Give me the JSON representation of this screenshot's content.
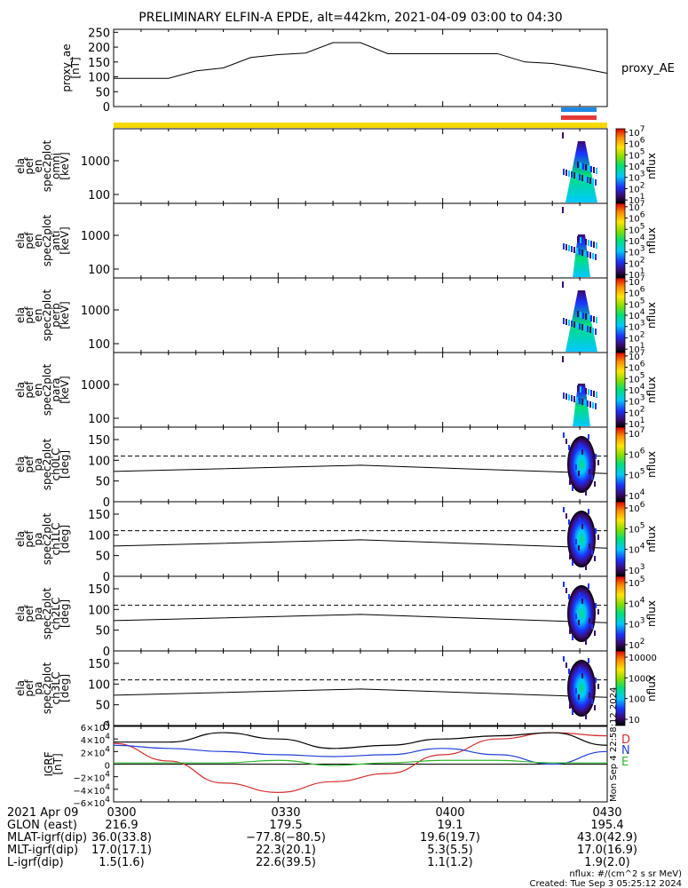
{
  "title": "PRELIMINARY ELFIN-A EPDE, alt=442km, 2021-04-09 03:00 to 04:30",
  "colors": {
    "yellow_bar": "#f5d800",
    "blue_bar": "#1e88e5",
    "red_bar": "#e53935",
    "trace_black": "#000000",
    "trace_red": "#d32f2f",
    "trace_blue": "#1e3fd8",
    "trace_green": "#2eb82e"
  },
  "chart_data": [
    {
      "type": "line",
      "panel": "proxy_ae",
      "ylabel_lines": [
        "proxy_ae",
        "[nT]"
      ],
      "right_label": "proxy_AE",
      "ylim": [
        0,
        260
      ],
      "yticks": [
        "250",
        "200",
        "150",
        "100",
        "50",
        "0"
      ],
      "ytick_values": [
        250,
        200,
        150,
        100,
        50,
        0
      ],
      "x_min": [
        0,
        2,
        5,
        10,
        15,
        20,
        25,
        30,
        35,
        40,
        45,
        50,
        55,
        60,
        65,
        70,
        75,
        80,
        85,
        90
      ],
      "values": [
        95,
        95,
        95,
        95,
        120,
        130,
        165,
        175,
        180,
        215,
        215,
        178,
        178,
        178,
        178,
        178,
        150,
        145,
        130,
        112
      ]
    },
    {
      "type": "heatmap",
      "panel": "en_omni",
      "ylabel_lines": [
        "ela",
        "pef",
        "en",
        "spec2plot",
        "omni",
        "[keV]"
      ],
      "yticks": [
        "1000",
        "100"
      ],
      "colorbar_label": "nflux",
      "colorbar_ticks": [
        "10^1",
        "10^2",
        "10^3",
        "10^4",
        "10^5",
        "10^6",
        "10^7"
      ]
    },
    {
      "type": "heatmap",
      "panel": "en_anti",
      "ylabel_lines": [
        "ela",
        "pef",
        "en",
        "spec2plot",
        "anti",
        "[keV]"
      ],
      "yticks": [
        "1000",
        "100"
      ],
      "colorbar_label": "nflux",
      "colorbar_ticks": [
        "10^1",
        "10^2",
        "10^3",
        "10^4",
        "10^5",
        "10^6",
        "10^7"
      ]
    },
    {
      "type": "heatmap",
      "panel": "en_perp",
      "ylabel_lines": [
        "ela",
        "pef",
        "en",
        "spec2plot",
        "perp",
        "[keV]"
      ],
      "yticks": [
        "1000",
        "100"
      ],
      "colorbar_label": "nflux",
      "colorbar_ticks": [
        "10^1",
        "10^2",
        "10^3",
        "10^4",
        "10^5",
        "10^6",
        "10^7"
      ]
    },
    {
      "type": "heatmap",
      "panel": "en_para",
      "ylabel_lines": [
        "ela",
        "pef",
        "en",
        "spec2plot",
        "para",
        "[keV]"
      ],
      "yticks": [
        "1000",
        "100"
      ],
      "colorbar_label": "nflux",
      "colorbar_ticks": [
        "10^1",
        "10^2",
        "10^3",
        "10^4",
        "10^5",
        "10^6",
        "10^7"
      ]
    },
    {
      "type": "heatmap",
      "panel": "pa_ch0LC",
      "ylabel_lines": [
        "ela",
        "pef",
        "pa",
        "spec2plot",
        "ch0LC",
        "[deg]"
      ],
      "ylim": [
        0,
        180
      ],
      "yticks": [
        "150",
        "100",
        "50",
        "0"
      ],
      "colorbar_label": "nflux",
      "colorbar_ticks": [
        "10^4",
        "10^5",
        "10^6",
        "10^7"
      ],
      "lc_x_min": [
        0,
        45,
        90
      ],
      "lc_solid_deg": [
        73,
        88,
        68
      ],
      "lc_dashed_deg": [
        110,
        110,
        110
      ]
    },
    {
      "type": "heatmap",
      "panel": "pa_ch1LC",
      "ylabel_lines": [
        "ela",
        "pef",
        "pa",
        "spec2plot",
        "ch1LC",
        "[deg]"
      ],
      "ylim": [
        0,
        180
      ],
      "yticks": [
        "150",
        "100",
        "50",
        "0"
      ],
      "colorbar_label": "nflux",
      "colorbar_ticks": [
        "10^3",
        "10^4",
        "10^5",
        "10^6"
      ],
      "lc_x_min": [
        0,
        45,
        90
      ],
      "lc_solid_deg": [
        73,
        88,
        68
      ],
      "lc_dashed_deg": [
        110,
        110,
        110
      ]
    },
    {
      "type": "heatmap",
      "panel": "pa_ch2LC",
      "ylabel_lines": [
        "ela",
        "pef",
        "pa",
        "spec2plot",
        "ch2LC",
        "[deg]"
      ],
      "ylim": [
        0,
        180
      ],
      "yticks": [
        "150",
        "100",
        "50",
        "0"
      ],
      "colorbar_label": "nflux",
      "colorbar_ticks": [
        "10^2",
        "10^3",
        "10^4",
        "10^5"
      ],
      "lc_x_min": [
        0,
        45,
        90
      ],
      "lc_solid_deg": [
        73,
        88,
        68
      ],
      "lc_dashed_deg": [
        110,
        110,
        110
      ]
    },
    {
      "type": "heatmap",
      "panel": "pa_ch3LC",
      "ylabel_lines": [
        "ela",
        "pef",
        "pa",
        "spec2plot",
        "ch3LC",
        "[deg]"
      ],
      "ylim": [
        0,
        180
      ],
      "yticks": [
        "150",
        "100",
        "50",
        "0"
      ],
      "colorbar_label": "nflux",
      "colorbar_ticks": [
        "10",
        "100",
        "1000",
        "10000"
      ],
      "lc_x_min": [
        0,
        45,
        90
      ],
      "lc_solid_deg": [
        73,
        88,
        68
      ],
      "lc_dashed_deg": [
        110,
        110,
        110
      ]
    },
    {
      "type": "line",
      "panel": "igrf",
      "ylabel_lines": [
        "IGRF",
        "[nT]"
      ],
      "ylim": [
        -60000,
        60000
      ],
      "yticks": [
        "6×10^4",
        "4×10^4",
        "2×10^4",
        "0",
        "−2×10^4",
        "−4×10^4",
        "−6×10^4"
      ],
      "ytick_values": [
        60000,
        40000,
        20000,
        0,
        -20000,
        -40000,
        -60000
      ],
      "right_labels": [
        "D",
        "N",
        "E"
      ],
      "side_text": "Mon Sep 4 22:58:12 2024",
      "x_min": [
        0,
        10,
        20,
        30,
        40,
        50,
        60,
        70,
        80,
        90
      ],
      "series": [
        {
          "name": "D",
          "color": "#d32f2f",
          "values": [
            33000,
            5000,
            -30000,
            -45000,
            -28000,
            -15000,
            15000,
            40000,
            50000,
            45000
          ]
        },
        {
          "name": "N",
          "color": "#1e3fd8",
          "values": [
            30000,
            25000,
            20000,
            15000,
            12000,
            15000,
            25000,
            15000,
            0,
            20000
          ]
        },
        {
          "name": "E",
          "color": "#2eb82e",
          "values": [
            2000,
            2000,
            2000,
            6000,
            -2000,
            2000,
            6000,
            6000,
            2000,
            2000
          ]
        },
        {
          "name": "",
          "color": "#000000",
          "values": [
            35000,
            35000,
            50000,
            40000,
            25000,
            30000,
            40000,
            45000,
            50000,
            30000
          ]
        }
      ]
    }
  ],
  "xaxis": {
    "labels": [
      "0300",
      "0330",
      "0400",
      "0430"
    ],
    "x_min": [
      0,
      30,
      60,
      90
    ],
    "date_label": "2021 Apr 09"
  },
  "ephemeris": [
    {
      "name": "GLON (east)",
      "values": [
        "216.9",
        "179.5",
        "19.1",
        "195.4"
      ]
    },
    {
      "name": "MLAT-igrf(dip)",
      "values": [
        "36.0(33.8)",
        "−77.8(−80.5)",
        "19.6(19.7)",
        "43.0(42.9)"
      ]
    },
    {
      "name": "MLT-igrf(dip)",
      "values": [
        "17.0(17.1)",
        "22.3(20.1)",
        "5.3(5.5)",
        "17.0(16.9)"
      ]
    },
    {
      "name": "L-igrf(dip)",
      "values": [
        "1.5(1.6)",
        "22.6(39.5)",
        "1.1(1.2)",
        "1.9(2.0)"
      ]
    }
  ],
  "footer": {
    "units": "nflux: #/(cm^2 s sr MeV)",
    "created": "Created: Tue Sep  3 05:25:12 2024"
  }
}
